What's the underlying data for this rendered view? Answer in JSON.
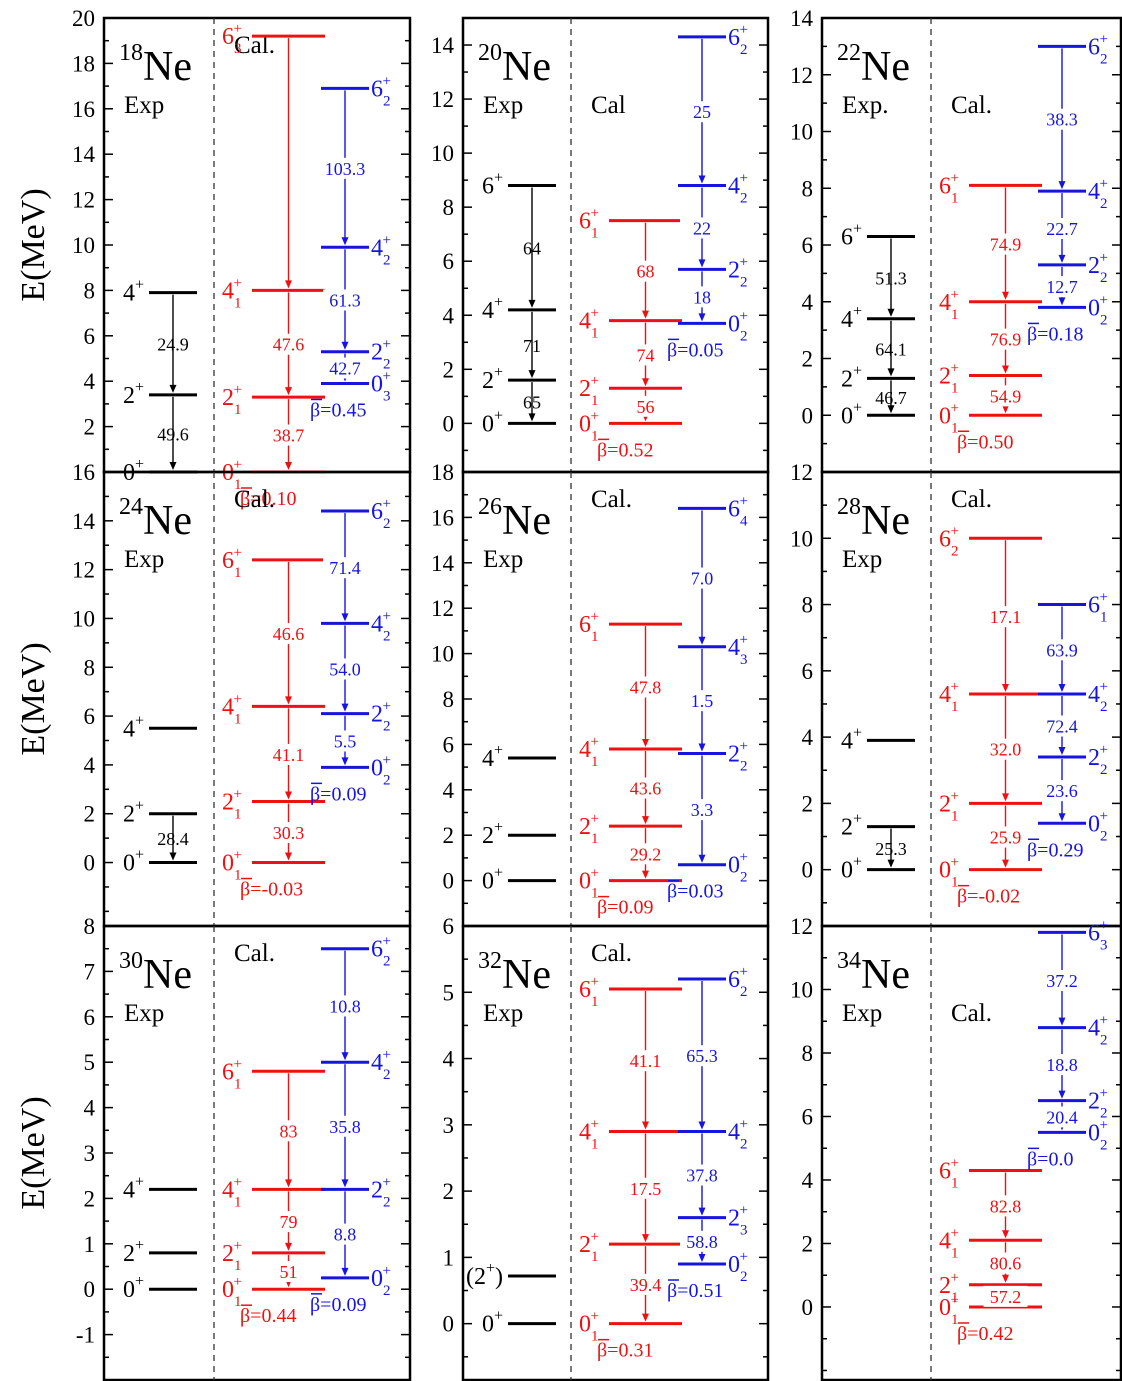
{
  "figure": {
    "ylabel": "E(MeV)",
    "colors": {
      "exp": "#000000",
      "cal_red": "#ee1111",
      "cal_blue": "#1515dd",
      "frame": "#000000"
    }
  },
  "chart_data": [
    {
      "type": "level-scheme",
      "nucleus": "Ne",
      "mass": "18",
      "ylim": [
        0,
        20
      ],
      "yticks": [
        "0",
        "2",
        "4",
        "6",
        "8",
        "10",
        "12",
        "14",
        "16",
        "18",
        "20"
      ],
      "labels": {
        "exp": "Exp",
        "cal": "Cal."
      },
      "exp": {
        "levels": [
          {
            "name": "0+",
            "e": 0
          },
          {
            "name": "2+",
            "e": 3.4
          },
          {
            "name": "4+",
            "e": 7.9
          }
        ],
        "transitions": [
          {
            "from": "2+",
            "to": "0+",
            "value": "49.6"
          },
          {
            "from": "4+",
            "to": "2+",
            "value": "24.9"
          }
        ]
      },
      "red": {
        "levels": [
          {
            "name": "0_1+",
            "e": 0
          },
          {
            "name": "2_1+",
            "e": 3.3
          },
          {
            "name": "4_1+",
            "e": 8.0
          },
          {
            "name": "6_3+",
            "e": 19.2
          }
        ],
        "transitions": [
          "38.7",
          "47.6",
          ""
        ],
        "beta": "β=0.10"
      },
      "blue": {
        "levels": [
          {
            "name": "0_3+",
            "e": 3.9
          },
          {
            "name": "2_2+",
            "e": 5.3
          },
          {
            "name": "4_2+",
            "e": 9.9
          },
          {
            "name": "6_2+",
            "e": 16.9
          }
        ],
        "transitions": [
          "42.7",
          "61.3",
          "103.3"
        ],
        "beta": "β=0.45"
      }
    },
    {
      "type": "level-scheme",
      "nucleus": "Ne",
      "mass": "20",
      "ylim": [
        -1.8,
        15
      ],
      "yticks": [
        "0",
        "2",
        "4",
        "6",
        "8",
        "10",
        "12",
        "14"
      ],
      "labels": {
        "exp": "Exp",
        "cal": "Cal"
      },
      "exp": {
        "levels": [
          {
            "name": "0+",
            "e": 0
          },
          {
            "name": "2+",
            "e": 1.6
          },
          {
            "name": "4+",
            "e": 4.2
          },
          {
            "name": "6+",
            "e": 8.8
          }
        ],
        "transitions": [
          {
            "from": "2+",
            "to": "0+",
            "value": "65"
          },
          {
            "from": "4+",
            "to": "2+",
            "value": "71"
          },
          {
            "from": "6+",
            "to": "4+",
            "value": "64"
          }
        ]
      },
      "red": {
        "levels": [
          {
            "name": "0_1+",
            "e": 0
          },
          {
            "name": "2_1+",
            "e": 1.3
          },
          {
            "name": "4_1+",
            "e": 3.8
          },
          {
            "name": "6_1+",
            "e": 7.5
          }
        ],
        "transitions": [
          "56",
          "74",
          "68"
        ],
        "beta": "β=0.52"
      },
      "blue": {
        "levels": [
          {
            "name": "0_2+",
            "e": 3.7
          },
          {
            "name": "2_2+",
            "e": 5.7
          },
          {
            "name": "4_2+",
            "e": 8.8
          },
          {
            "name": "6_2+",
            "e": 14.3
          }
        ],
        "transitions": [
          "18",
          "22",
          "25"
        ],
        "beta": "β=0.05"
      }
    },
    {
      "type": "level-scheme",
      "nucleus": "Ne",
      "mass": "22",
      "ylim": [
        -2,
        14
      ],
      "yticks": [
        "0",
        "2",
        "4",
        "6",
        "8",
        "10",
        "12",
        "14"
      ],
      "labels": {
        "exp": "Exp.",
        "cal": "Cal."
      },
      "exp": {
        "levels": [
          {
            "name": "0+",
            "e": 0
          },
          {
            "name": "2+",
            "e": 1.3
          },
          {
            "name": "4+",
            "e": 3.4
          },
          {
            "name": "6+",
            "e": 6.3
          }
        ],
        "transitions": [
          {
            "from": "2+",
            "to": "0+",
            "value": "46.7"
          },
          {
            "from": "4+",
            "to": "2+",
            "value": "64.1"
          },
          {
            "from": "6+",
            "to": "4+",
            "value": "51.3"
          }
        ]
      },
      "red": {
        "levels": [
          {
            "name": "0_1+",
            "e": 0
          },
          {
            "name": "2_1+",
            "e": 1.4
          },
          {
            "name": "4_1+",
            "e": 4.0
          },
          {
            "name": "6_1+",
            "e": 8.1
          }
        ],
        "transitions": [
          "54.9",
          "76.9",
          "74.9"
        ],
        "beta": "β=0.50"
      },
      "blue": {
        "levels": [
          {
            "name": "0_2+",
            "e": 3.8
          },
          {
            "name": "2_2+",
            "e": 5.3
          },
          {
            "name": "4_2+",
            "e": 7.9
          },
          {
            "name": "6_2+",
            "e": 13.0
          }
        ],
        "transitions": [
          "12.7",
          "22.7",
          "38.3"
        ],
        "beta": "β=0.18"
      }
    },
    {
      "type": "level-scheme",
      "nucleus": "Ne",
      "mass": "24",
      "ylim": [
        -2.6,
        16
      ],
      "yticks": [
        "0",
        "2",
        "4",
        "6",
        "8",
        "10",
        "12",
        "14",
        "16"
      ],
      "labels": {
        "exp": "Exp",
        "cal": "Cal."
      },
      "exp": {
        "levels": [
          {
            "name": "0+",
            "e": 0
          },
          {
            "name": "2+",
            "e": 2.0
          },
          {
            "name": "4+",
            "e": 5.5
          }
        ],
        "transitions": [
          {
            "from": "2+",
            "to": "0+",
            "value": "28.4"
          }
        ]
      },
      "red": {
        "levels": [
          {
            "name": "0_1+",
            "e": 0
          },
          {
            "name": "2_1+",
            "e": 2.5
          },
          {
            "name": "4_1+",
            "e": 6.4
          },
          {
            "name": "6_1+",
            "e": 12.4
          }
        ],
        "transitions": [
          "30.3",
          "41.1",
          "46.6"
        ],
        "beta": "β=-0.03"
      },
      "blue": {
        "levels": [
          {
            "name": "0_2+",
            "e": 3.9
          },
          {
            "name": "2_2+",
            "e": 6.1
          },
          {
            "name": "4_2+",
            "e": 9.8
          },
          {
            "name": "6_2+",
            "e": 14.4
          }
        ],
        "transitions": [
          "5.5",
          "54.0",
          "71.4"
        ],
        "beta": "β=0.09"
      }
    },
    {
      "type": "level-scheme",
      "nucleus": "Ne",
      "mass": "26",
      "ylim": [
        -2,
        18
      ],
      "yticks": [
        "0",
        "2",
        "4",
        "6",
        "8",
        "10",
        "12",
        "14",
        "16",
        "18"
      ],
      "labels": {
        "exp": "Exp",
        "cal": "Cal."
      },
      "exp": {
        "levels": [
          {
            "name": "0+",
            "e": 0
          },
          {
            "name": "2+",
            "e": 2.0
          },
          {
            "name": "4+",
            "e": 5.4
          }
        ],
        "transitions": []
      },
      "red": {
        "levels": [
          {
            "name": "0_1+",
            "e": 0
          },
          {
            "name": "2_1+",
            "e": 2.4
          },
          {
            "name": "4_1+",
            "e": 5.8
          },
          {
            "name": "6_1+",
            "e": 11.3
          }
        ],
        "transitions": [
          "29.2",
          "43.6",
          "47.8"
        ],
        "beta": "β=0.09"
      },
      "blue": {
        "levels": [
          {
            "name": "0_2+",
            "e": 0.7
          },
          {
            "name": "2_2+",
            "e": 5.6
          },
          {
            "name": "4_3+",
            "e": 10.3
          },
          {
            "name": "6_4+",
            "e": 16.4
          }
        ],
        "transitions": [
          "3.3",
          "1.5",
          "7.0"
        ],
        "beta": "β=0.03"
      }
    },
    {
      "type": "level-scheme",
      "nucleus": "Ne",
      "mass": "28",
      "ylim": [
        -1.7,
        12
      ],
      "yticks": [
        "0",
        "2",
        "4",
        "6",
        "8",
        "10",
        "12"
      ],
      "labels": {
        "exp": "Exp",
        "cal": "Cal."
      },
      "exp": {
        "levels": [
          {
            "name": "0+",
            "e": 0
          },
          {
            "name": "2+",
            "e": 1.3
          },
          {
            "name": "4+",
            "e": 3.9
          }
        ],
        "transitions": [
          {
            "from": "2+",
            "to": "0+",
            "value": "25.3"
          }
        ]
      },
      "red": {
        "levels": [
          {
            "name": "0_1+",
            "e": 0
          },
          {
            "name": "2_1+",
            "e": 2.0
          },
          {
            "name": "4_1+",
            "e": 5.3
          },
          {
            "name": "6_2+",
            "e": 10.0
          }
        ],
        "transitions": [
          "25.9",
          "32.0",
          "17.1"
        ],
        "beta": "β=-0.02"
      },
      "blue": {
        "levels": [
          {
            "name": "0_2+",
            "e": 1.4
          },
          {
            "name": "2_2+",
            "e": 3.4
          },
          {
            "name": "4_2+",
            "e": 5.3
          },
          {
            "name": "6_1+",
            "e": 8.0
          }
        ],
        "transitions": [
          "23.6",
          "72.4",
          "63.9"
        ],
        "beta": "β=0.29"
      }
    },
    {
      "type": "level-scheme",
      "nucleus": "Ne",
      "mass": "30",
      "ylim": [
        -2,
        8
      ],
      "yticks": [
        "-1",
        "0",
        "1",
        "2",
        "3",
        "4",
        "5",
        "6",
        "7",
        "8"
      ],
      "labels": {
        "exp": "Exp",
        "cal": "Cal."
      },
      "exp": {
        "levels": [
          {
            "name": "0+",
            "e": 0
          },
          {
            "name": "2+",
            "e": 0.8
          },
          {
            "name": "4+",
            "e": 2.2
          }
        ],
        "transitions": []
      },
      "red": {
        "levels": [
          {
            "name": "0_1+",
            "e": 0
          },
          {
            "name": "2_1+",
            "e": 0.8
          },
          {
            "name": "4_1+",
            "e": 2.2
          },
          {
            "name": "6_1+",
            "e": 4.8
          }
        ],
        "transitions": [
          "51",
          "79",
          "83"
        ],
        "beta": "β=0.44"
      },
      "blue": {
        "levels": [
          {
            "name": "0_2+",
            "e": 0.25
          },
          {
            "name": "2_2+",
            "e": 2.2
          },
          {
            "name": "4_2+",
            "e": 5.0
          },
          {
            "name": "6_2+",
            "e": 7.5
          }
        ],
        "transitions": [
          "8.8",
          "35.8",
          "10.8"
        ],
        "beta": "β=0.09"
      }
    },
    {
      "type": "level-scheme",
      "nucleus": "Ne",
      "mass": "32",
      "ylim": [
        -0.85,
        6
      ],
      "yticks": [
        "0",
        "1",
        "2",
        "3",
        "4",
        "5",
        "6"
      ],
      "labels": {
        "exp": "Exp",
        "cal": "Cal."
      },
      "exp": {
        "levels": [
          {
            "name": "0+",
            "e": 0
          },
          {
            "name": "(2+)",
            "e": 0.72
          }
        ],
        "transitions": []
      },
      "red": {
        "levels": [
          {
            "name": "0_1+",
            "e": 0
          },
          {
            "name": "2_1+",
            "e": 1.2
          },
          {
            "name": "4_1+",
            "e": 2.9
          },
          {
            "name": "6_1+",
            "e": 5.05
          }
        ],
        "transitions": [
          "39.4",
          "17.5",
          "41.1"
        ],
        "beta": "β=0.31"
      },
      "blue": {
        "levels": [
          {
            "name": "0_2+",
            "e": 0.9
          },
          {
            "name": "2_3+",
            "e": 1.6
          },
          {
            "name": "4_2+",
            "e": 2.9
          },
          {
            "name": "6_2+",
            "e": 5.2
          }
        ],
        "transitions": [
          "58.8",
          "37.8",
          "65.3"
        ],
        "beta": "β=0.51"
      }
    },
    {
      "type": "level-scheme",
      "nucleus": "Ne",
      "mass": "34",
      "ylim": [
        -2.3,
        12
      ],
      "yticks": [
        "0",
        "2",
        "4",
        "6",
        "8",
        "10",
        "12"
      ],
      "labels": {
        "exp": "Exp",
        "cal": "Cal."
      },
      "exp": {
        "levels": [],
        "transitions": []
      },
      "red": {
        "levels": [
          {
            "name": "0_1+",
            "e": 0
          },
          {
            "name": "2_1+",
            "e": 0.7
          },
          {
            "name": "4_1+",
            "e": 2.1
          },
          {
            "name": "6_1+",
            "e": 4.3
          }
        ],
        "transitions": [
          "57.2",
          "80.6",
          "82.8"
        ],
        "beta": "β=0.42"
      },
      "blue": {
        "levels": [
          {
            "name": "0_2+",
            "e": 5.5
          },
          {
            "name": "2_2+",
            "e": 6.5
          },
          {
            "name": "4_2+",
            "e": 8.8
          },
          {
            "name": "6_3+",
            "e": 11.8
          }
        ],
        "transitions": [
          "20.4",
          "18.8",
          "37.2"
        ],
        "beta": "β=0.0"
      }
    }
  ]
}
